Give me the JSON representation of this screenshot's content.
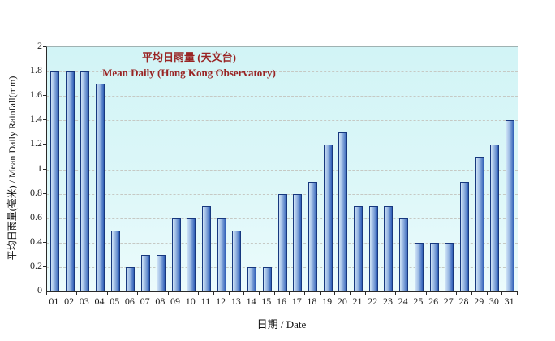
{
  "chart_data": {
    "type": "bar",
    "title": "平均日雨量 (天文台)",
    "subtitle": "Mean Daily (Hong Kong Observatory)",
    "xlabel": "日期 / Date",
    "ylabel": "平均日雨量(毫米) / Mean Daily Rainfall(mm)",
    "categories": [
      "01",
      "02",
      "03",
      "04",
      "05",
      "06",
      "07",
      "08",
      "09",
      "10",
      "11",
      "12",
      "13",
      "14",
      "15",
      "16",
      "17",
      "18",
      "19",
      "20",
      "21",
      "22",
      "23",
      "24",
      "25",
      "26",
      "27",
      "28",
      "29",
      "30",
      "31"
    ],
    "values": [
      1.8,
      1.8,
      1.8,
      1.7,
      0.5,
      0.2,
      0.3,
      0.3,
      0.6,
      0.6,
      0.7,
      0.6,
      0.5,
      0.2,
      0.2,
      0.8,
      0.8,
      0.9,
      1.2,
      1.3,
      0.7,
      0.7,
      0.7,
      0.6,
      0.4,
      0.4,
      0.4,
      0.9,
      1.1,
      1.2,
      1.4
    ],
    "ylim": [
      0,
      2
    ],
    "ytick_interval": 0.2,
    "ytick_labels": [
      "0",
      "0.2",
      "0.4",
      "0.6",
      "0.8",
      "1",
      "1.2",
      "1.4",
      "1.6",
      "1.8",
      "2"
    ],
    "grid": "horizontal-dashed",
    "legend": "none",
    "colors": {
      "title_text": "#992424",
      "bar_fill_light": "#cfe3f7",
      "bar_fill_dark": "#2d5db5",
      "bar_border": "#17387e",
      "plot_bg_top": "#d2f4f6",
      "plot_bg_bottom": "#ecfbfc",
      "gridline": "#c6c9c4",
      "axis_text": "#1a1a1a"
    }
  }
}
